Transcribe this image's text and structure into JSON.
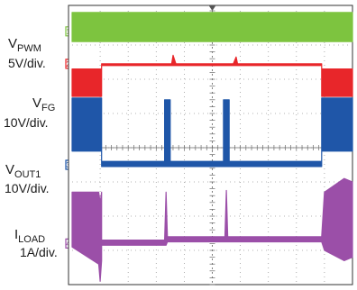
{
  "chart_data": {
    "type": "line",
    "title": "",
    "xlabel": "",
    "ylabel": "",
    "grid": true,
    "grid_divisions": {
      "x": 10,
      "y": 8
    },
    "channel_labels": [
      {
        "name": "V",
        "sub": "PWM",
        "scale": "5V/div.",
        "marker": "1"
      },
      {
        "name": "V",
        "sub": "FG",
        "scale": "10V/div.",
        "marker": "2"
      },
      {
        "name": "V",
        "sub": "OUT1",
        "scale": "10V/div.",
        "marker": "3"
      },
      {
        "name": "I",
        "sub": "LOAD",
        "scale": "1A/div.",
        "marker": "4"
      }
    ],
    "series": [
      {
        "color": "#7dc43f",
        "style": "band",
        "x": [
          0,
          10
        ],
        "top": [
          0.05,
          0.05
        ],
        "bottom": [
          0.9,
          0.9
        ]
      },
      {
        "color": "#e8262a",
        "style": "band",
        "x": [
          0,
          1.05,
          1.05,
          3.55,
          3.6,
          3.7,
          5.75,
          5.85,
          5.9,
          8.9,
          8.9,
          10
        ],
        "top": [
          1.7,
          1.7,
          1.55,
          1.55,
          1.3,
          1.55,
          1.55,
          1.35,
          1.55,
          1.55,
          1.7,
          1.7
        ],
        "bottom": [
          2.5,
          2.5,
          1.6,
          1.6,
          1.6,
          1.6,
          1.6,
          1.6,
          1.6,
          1.6,
          2.5,
          2.5
        ]
      },
      {
        "color": "#1f56a8",
        "style": "band",
        "x": [
          0,
          1.05,
          1.05,
          3.3,
          3.3,
          3.5,
          3.5,
          5.4,
          5.4,
          5.6,
          5.6,
          8.9,
          8.9,
          10
        ],
        "top": [
          2.55,
          2.55,
          4.4,
          4.4,
          2.6,
          2.6,
          4.4,
          4.4,
          2.6,
          2.6,
          4.4,
          4.4,
          2.55,
          2.55
        ],
        "bottom": [
          4.1,
          4.1,
          4.55,
          4.55,
          4.55,
          4.55,
          4.55,
          4.55,
          4.55,
          4.55,
          4.55,
          4.55,
          4.1,
          4.1
        ]
      },
      {
        "color": "#9b4fa8",
        "style": "band",
        "x": [
          0,
          0.95,
          1.0,
          1.05,
          1.05,
          3.25,
          3.3,
          3.35,
          3.4,
          3.45,
          5.45,
          5.5,
          5.55,
          5.6,
          5.65,
          8.9,
          9.0,
          9.7,
          10
        ],
        "top": [
          5.3,
          5.3,
          5.6,
          5.3,
          6.7,
          6.7,
          6.7,
          5.3,
          6.6,
          6.6,
          6.6,
          5.25,
          6.6,
          6.6,
          6.6,
          6.6,
          5.3,
          4.9,
          5.0
        ],
        "bottom": [
          6.9,
          7.4,
          7.9,
          7.3,
          6.85,
          6.85,
          6.85,
          6.85,
          6.75,
          6.75,
          6.75,
          6.75,
          6.75,
          6.75,
          6.75,
          6.75,
          7.0,
          7.3,
          7.2
        ]
      }
    ]
  }
}
